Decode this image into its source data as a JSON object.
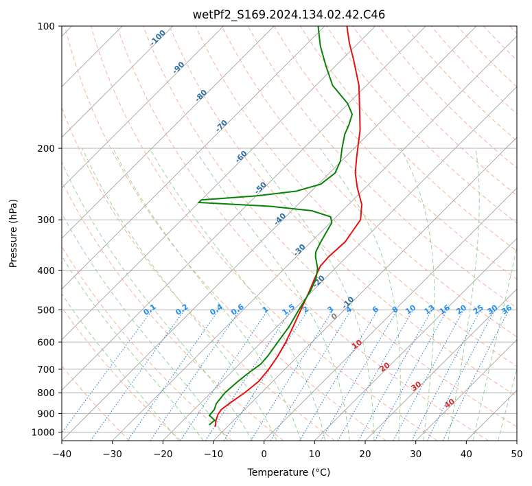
{
  "chart_data": {
    "type": "line",
    "subtype": "skew-t log-p diagram",
    "title": "wetPf2_S169.2024.134.02.42.C46",
    "xlabel": "Temperature (°C)",
    "ylabel": "Pressure (hPa)",
    "xlim": [
      -40,
      50
    ],
    "ylim": [
      1050,
      100
    ],
    "yscale": "log",
    "x_ticks": [
      -40,
      -30,
      -20,
      -10,
      0,
      10,
      20,
      30,
      40,
      50
    ],
    "x_tick_labels": [
      "−40",
      "−30",
      "−20",
      "−10",
      "0",
      "10",
      "20",
      "30",
      "40",
      "50"
    ],
    "y_ticks": [
      1000,
      900,
      800,
      700,
      600,
      500,
      400,
      300,
      200,
      100
    ],
    "y_tick_labels": [
      "1000",
      "900",
      "800",
      "700",
      "600",
      "500",
      "400",
      "300",
      "200",
      "100"
    ],
    "grid": true,
    "colors": {
      "temperature": "#e6110f",
      "dewpoint": "#078207",
      "dry_adiabat": "#f8a98f",
      "moist_adiabat": "#8fcf8f",
      "mixing_ratio": "#2a7fd6",
      "isotherm": "#9a9a9a",
      "grid": "#b0b0b0",
      "isotherm_label": "#2c6fa6",
      "mixing_ratio_label": "#1f8ef0",
      "adiabat_label": "#d62728",
      "zero_label": "#808080"
    },
    "series": [
      {
        "role": "temperature",
        "points": [
          {
            "p": 970,
            "t": -12.4
          },
          {
            "p": 940,
            "t": -13.4
          },
          {
            "p": 905,
            "t": -14.3
          },
          {
            "p": 880,
            "t": -14.6
          },
          {
            "p": 850,
            "t": -14.2
          },
          {
            "p": 800,
            "t": -13.3
          },
          {
            "p": 750,
            "t": -12.8
          },
          {
            "p": 700,
            "t": -13.2
          },
          {
            "p": 650,
            "t": -14.0
          },
          {
            "p": 600,
            "t": -15.2
          },
          {
            "p": 550,
            "t": -16.8
          },
          {
            "p": 500,
            "t": -18.6
          },
          {
            "p": 450,
            "t": -20.6
          },
          {
            "p": 420,
            "t": -22.0
          },
          {
            "p": 390,
            "t": -23.4
          },
          {
            "p": 370,
            "t": -23.6
          },
          {
            "p": 340,
            "t": -23.3
          },
          {
            "p": 300,
            "t": -24.6
          },
          {
            "p": 275,
            "t": -27.4
          },
          {
            "p": 250,
            "t": -31.6
          },
          {
            "p": 230,
            "t": -34.9
          },
          {
            "p": 210,
            "t": -37.8
          },
          {
            "p": 180,
            "t": -42.5
          },
          {
            "p": 160,
            "t": -46.7
          },
          {
            "p": 140,
            "t": -51.5
          },
          {
            "p": 120,
            "t": -58.0
          },
          {
            "p": 110,
            "t": -61.8
          },
          {
            "p": 100,
            "t": -65.6
          }
        ]
      },
      {
        "role": "dewpoint",
        "points": [
          {
            "p": 960,
            "t": -14.0
          },
          {
            "p": 935,
            "t": -13.8
          },
          {
            "p": 910,
            "t": -15.8
          },
          {
            "p": 880,
            "t": -16.0
          },
          {
            "p": 850,
            "t": -16.8
          },
          {
            "p": 800,
            "t": -17.2
          },
          {
            "p": 750,
            "t": -16.9
          },
          {
            "p": 710,
            "t": -16.4
          },
          {
            "p": 680,
            "t": -15.8
          },
          {
            "p": 650,
            "t": -16.0
          },
          {
            "p": 600,
            "t": -16.8
          },
          {
            "p": 550,
            "t": -17.6
          },
          {
            "p": 500,
            "t": -19.0
          },
          {
            "p": 450,
            "t": -20.4
          },
          {
            "p": 420,
            "t": -21.7
          },
          {
            "p": 395,
            "t": -23.5
          },
          {
            "p": 370,
            "t": -26.2
          },
          {
            "p": 360,
            "t": -27.1
          },
          {
            "p": 340,
            "t": -28.1
          },
          {
            "p": 320,
            "t": -29.0
          },
          {
            "p": 305,
            "t": -29.7
          },
          {
            "p": 295,
            "t": -31.1
          },
          {
            "p": 285,
            "t": -36.0
          },
          {
            "p": 278,
            "t": -45.0
          },
          {
            "p": 272,
            "t": -60.0
          },
          {
            "p": 268,
            "t": -60.0
          },
          {
            "p": 262,
            "t": -50.0
          },
          {
            "p": 255,
            "t": -43.0
          },
          {
            "p": 245,
            "t": -39.5
          },
          {
            "p": 230,
            "t": -38.9
          },
          {
            "p": 215,
            "t": -40.2
          },
          {
            "p": 200,
            "t": -42.4
          },
          {
            "p": 185,
            "t": -44.6
          },
          {
            "p": 175,
            "t": -45.7
          },
          {
            "p": 165,
            "t": -47.1
          },
          {
            "p": 155,
            "t": -50.2
          },
          {
            "p": 140,
            "t": -56.7
          },
          {
            "p": 125,
            "t": -62.0
          },
          {
            "p": 112,
            "t": -66.9
          },
          {
            "p": 100,
            "t": -71.3
          }
        ]
      }
    ],
    "isotherm_labels": [
      "-100",
      "-90",
      "-80",
      "-70",
      "-60",
      "-50",
      "-40",
      "-30",
      "-20",
      "-10"
    ],
    "mixing_ratio_labels": [
      "0.1",
      "0.2",
      "0.4",
      "0.6",
      "1",
      "1.5",
      "2",
      "3",
      "4",
      "6",
      "8",
      "10",
      "13",
      "16",
      "20",
      "25",
      "30",
      "36"
    ],
    "moist_adiabat_labels": [
      "0",
      "10",
      "20",
      "30",
      "40"
    ]
  }
}
